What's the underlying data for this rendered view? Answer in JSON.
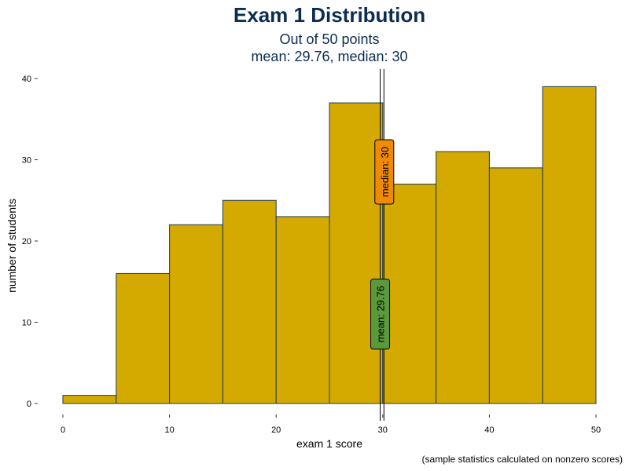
{
  "chart_data": {
    "type": "bar",
    "title": "Exam 1 Distribution",
    "subtitle_line1": "Out of 50 points",
    "subtitle_line2": "mean: 29.76, median: 30",
    "xlabel": "exam 1 score",
    "ylabel": "number of students",
    "caption": "(sample statistics calculated on nonzero scores)",
    "xlim": [
      0,
      50
    ],
    "ylim": [
      0,
      40
    ],
    "x_ticks": [
      0,
      10,
      20,
      30,
      40,
      50
    ],
    "y_ticks": [
      0,
      10,
      20,
      30,
      40
    ],
    "bin_width": 5,
    "bins": [
      {
        "start": 0,
        "end": 5,
        "count": 1
      },
      {
        "start": 5,
        "end": 10,
        "count": 16
      },
      {
        "start": 10,
        "end": 15,
        "count": 22
      },
      {
        "start": 15,
        "end": 20,
        "count": 25
      },
      {
        "start": 20,
        "end": 25,
        "count": 23
      },
      {
        "start": 25,
        "end": 30,
        "count": 37
      },
      {
        "start": 30,
        "end": 35,
        "count": 27
      },
      {
        "start": 35,
        "end": 40,
        "count": 31
      },
      {
        "start": 40,
        "end": 45,
        "count": 29
      },
      {
        "start": 45,
        "end": 50,
        "count": 39
      }
    ],
    "mean": 29.76,
    "median": 30,
    "mean_label": "mean: 29.76",
    "median_label": "median: 30",
    "mean_label_y": 11,
    "median_label_y": 28.5,
    "bar_color": "#d4a900",
    "bar_border": "#1f3a4d",
    "mean_color": "#5a9a3a",
    "median_color": "#f08a00",
    "grid": false
  }
}
